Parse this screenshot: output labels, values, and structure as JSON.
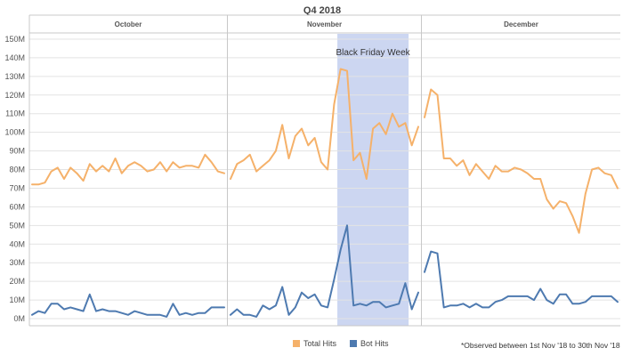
{
  "chart_data": {
    "type": "line",
    "title": "Q4 2018",
    "facets": [
      "October",
      "November",
      "December"
    ],
    "ylim": [
      0,
      150
    ],
    "yunit": "M",
    "yticks": [
      0,
      10,
      20,
      30,
      40,
      50,
      60,
      70,
      80,
      90,
      100,
      110,
      120,
      130,
      140,
      150
    ],
    "ytick_labels": [
      "0M",
      "10M",
      "20M",
      "30M",
      "40M",
      "50M",
      "60M",
      "70M",
      "80M",
      "90M",
      "100M",
      "110M",
      "120M",
      "130M",
      "140M",
      "150M"
    ],
    "grid": true,
    "legend_position": "bottom-center",
    "series": [
      {
        "name": "Total Hits",
        "color": "#f5b16a",
        "values": {
          "October": [
            72,
            72,
            73,
            79,
            81,
            75,
            81,
            78,
            74,
            83,
            79,
            82,
            79,
            86,
            78,
            82,
            84,
            82,
            79,
            80,
            84,
            79,
            84,
            81,
            82,
            82,
            81,
            88,
            84,
            79,
            78
          ],
          "November": [
            75,
            83,
            85,
            88,
            79,
            82,
            85,
            90,
            104,
            86,
            98,
            102,
            93,
            97,
            84,
            80,
            115,
            134,
            133,
            85,
            89,
            75,
            102,
            105,
            99,
            110,
            103,
            105,
            93,
            103
          ],
          "December": [
            108,
            123,
            120,
            86,
            86,
            82,
            85,
            77,
            83,
            79,
            75,
            82,
            79,
            79,
            81,
            80,
            78,
            75,
            75,
            64,
            59,
            63,
            62,
            55,
            46,
            67,
            80,
            81,
            78,
            77,
            70
          ]
        }
      },
      {
        "name": "Bot Hits",
        "color": "#4e7ab0",
        "values": {
          "October": [
            2,
            4,
            3,
            8,
            8,
            5,
            6,
            5,
            4,
            13,
            4,
            5,
            4,
            4,
            3,
            2,
            4,
            3,
            2,
            2,
            2,
            1,
            8,
            2,
            3,
            2,
            3,
            3,
            6,
            6,
            6
          ],
          "November": [
            2,
            5,
            2,
            2,
            1,
            7,
            5,
            7,
            17,
            2,
            6,
            14,
            11,
            13,
            7,
            6,
            21,
            37,
            50,
            7,
            8,
            7,
            9,
            9,
            6,
            7,
            8,
            19,
            5,
            14
          ],
          "December": [
            25,
            36,
            35,
            6,
            7,
            7,
            8,
            6,
            8,
            6,
            6,
            9,
            10,
            12,
            12,
            12,
            12,
            10,
            16,
            10,
            8,
            13,
            13,
            8,
            8,
            9,
            12,
            12,
            12,
            12,
            9
          ]
        }
      }
    ],
    "annotations": [
      {
        "label": "Black Friday Week",
        "facet": "November",
        "x_start": 17,
        "x_end": 27,
        "color": "#c3cfee"
      }
    ],
    "note": "*Observed between 1st Nov '18 to 30th Nov '18"
  }
}
